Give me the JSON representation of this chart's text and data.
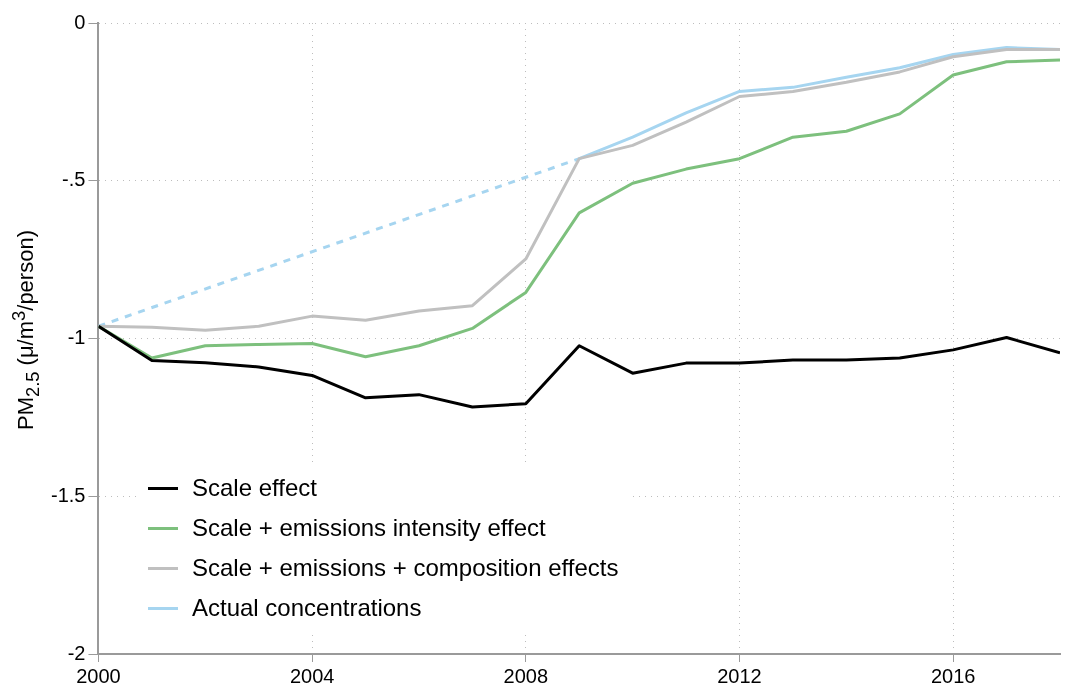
{
  "chart_data": {
    "type": "line",
    "ylabel": "PM$_{2.5}$ (μ/m$^{3}$/person)",
    "x": [
      2000,
      2001,
      2002,
      2003,
      2004,
      2005,
      2006,
      2007,
      2008,
      2009,
      2010,
      2011,
      2012,
      2013,
      2014,
      2015,
      2016,
      2017,
      2018
    ],
    "xlim": [
      2000,
      2018
    ],
    "xticks": [
      2000,
      2004,
      2008,
      2012,
      2016
    ],
    "ylim": [
      -2,
      0
    ],
    "yticks": [
      {
        "value": -2,
        "label": "-2"
      },
      {
        "value": -1.5,
        "label": "-1.5"
      },
      {
        "value": -1,
        "label": "-1"
      },
      {
        "value": -0.5,
        "label": "-.5"
      },
      {
        "value": 0,
        "label": "0"
      }
    ],
    "grid": true,
    "legend": "bottom left",
    "marker": "none",
    "line_style": "solid",
    "series": [
      {
        "name": "Scale effect",
        "color": "#000000",
        "values": [
          -0.961,
          -1.07,
          -1.077,
          -1.09,
          -1.117,
          -1.188,
          -1.178,
          -1.217,
          -1.207,
          -1.023,
          -1.11,
          -1.078,
          -1.078,
          -1.068,
          -1.068,
          -1.062,
          -1.036,
          -0.997,
          -1.045
        ]
      },
      {
        "name": "Scale + emissions intensity effect",
        "color": "#7dc07d",
        "values": [
          -0.961,
          -1.062,
          -1.023,
          -1.019,
          -1.016,
          -1.058,
          -1.023,
          -0.968,
          -0.854,
          -0.602,
          -0.508,
          -0.463,
          -0.43,
          -0.362,
          -0.343,
          -0.288,
          -0.165,
          -0.123,
          -0.117
        ]
      },
      {
        "name": "Scale + emissions + composition effects",
        "color": "#c0c0c0",
        "values": [
          -0.961,
          -0.964,
          -0.974,
          -0.961,
          -0.929,
          -0.942,
          -0.913,
          -0.896,
          -0.748,
          -0.43,
          -0.388,
          -0.314,
          -0.233,
          -0.217,
          -0.188,
          -0.155,
          -0.107,
          -0.084,
          -0.084
        ]
      },
      {
        "name": "Actual concentrations",
        "color": "#a6d5f0",
        "values": [
          -0.961,
          null,
          null,
          null,
          null,
          null,
          null,
          null,
          null,
          -0.43,
          -0.362,
          -0.285,
          -0.217,
          -0.204,
          -0.172,
          -0.142,
          -0.1,
          -0.078,
          -0.084
        ]
      }
    ]
  }
}
